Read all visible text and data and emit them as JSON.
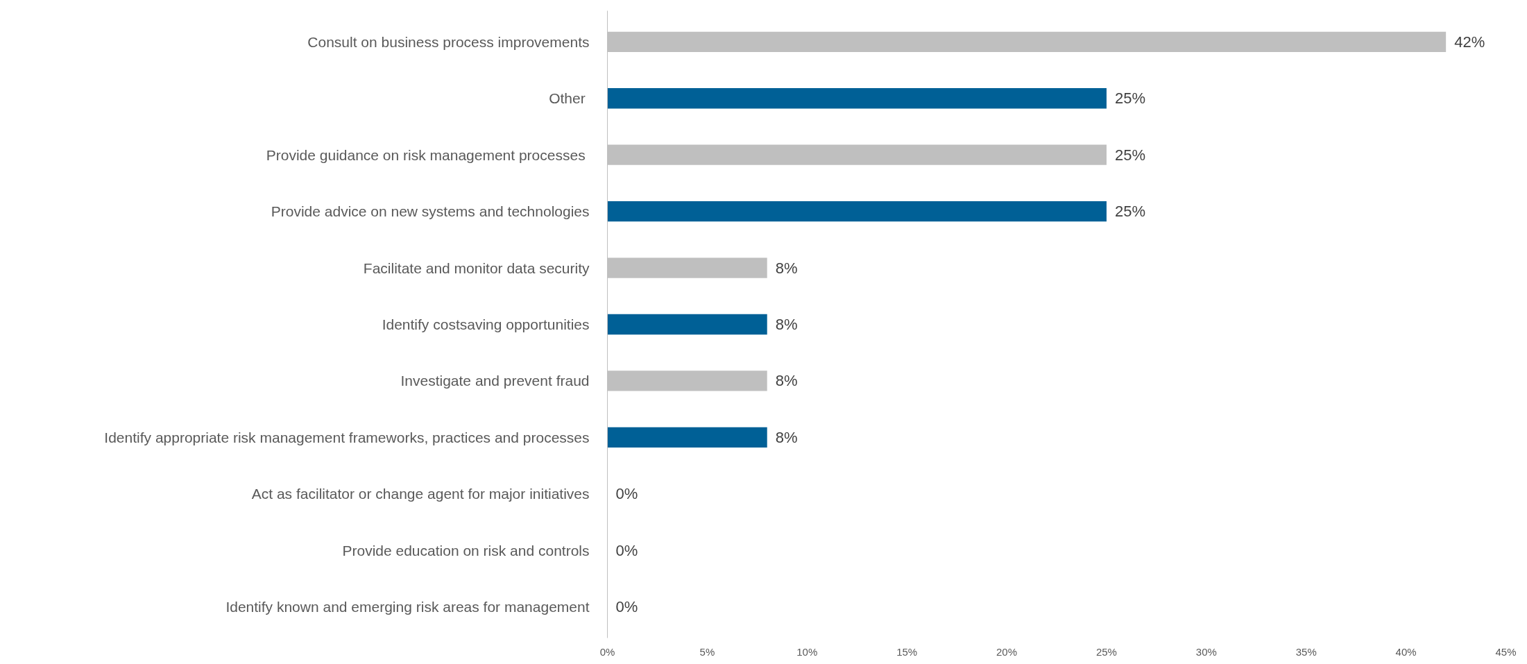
{
  "chart_data": {
    "type": "bar",
    "orientation": "horizontal",
    "categories": [
      "Consult on business process improvements",
      "Other ",
      "Provide guidance on risk management processes ",
      "Provide advice on new systems and technologies",
      "Facilitate and monitor data security",
      "Identify costsaving opportunities",
      "Investigate and prevent fraud",
      "Identify appropriate risk management frameworks, practices and processes",
      "Act as facilitator or change agent for major initiatives",
      "Provide education on risk and controls",
      "Identify known and emerging risk areas for management"
    ],
    "values": [
      42,
      25,
      25,
      25,
      8,
      8,
      8,
      8,
      0,
      0,
      0
    ],
    "colors": [
      "#bfbfbf",
      "#006096",
      "#bfbfbf",
      "#006096",
      "#bfbfbf",
      "#006096",
      "#bfbfbf",
      "#006096",
      "#bfbfbf",
      "#006096",
      "#bfbfbf"
    ],
    "value_labels": [
      "42%",
      "25%",
      "25%",
      "25%",
      "8%",
      "8%",
      "8%",
      "8%",
      "0%",
      "0%",
      "0%"
    ],
    "xlim": [
      0,
      45
    ],
    "xticks": [
      {
        "value": 0,
        "label": "0%"
      },
      {
        "value": 5,
        "label": "5%"
      },
      {
        "value": 10,
        "label": "10%"
      },
      {
        "value": 15,
        "label": "15%"
      },
      {
        "value": 20,
        "label": "20%"
      },
      {
        "value": 25,
        "label": "25%"
      },
      {
        "value": 30,
        "label": "30%"
      },
      {
        "value": 35,
        "label": "35%"
      },
      {
        "value": 40,
        "label": "40%"
      },
      {
        "value": 45,
        "label": "45%"
      }
    ],
    "grid": false
  }
}
